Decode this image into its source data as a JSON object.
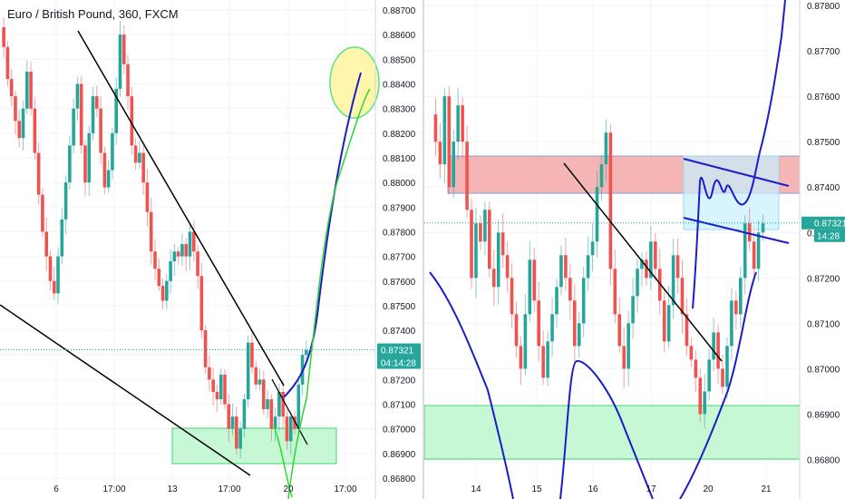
{
  "chart_data": [
    {
      "type": "candlestick",
      "title": "Euro / British Pound, 360, FXCM",
      "y_ticks": [
        "0.88700",
        "0.88600",
        "0.88500",
        "0.88400",
        "0.88300",
        "0.88200",
        "0.88100",
        "0.88000",
        "0.87900",
        "0.87800",
        "0.87700",
        "0.87600",
        "0.87500",
        "0.87400",
        "0.87300",
        "0.87200",
        "0.87100",
        "0.87000",
        "0.86900",
        "0.86800"
      ],
      "x_ticks": [
        "6",
        "17:00",
        "13",
        "17:00",
        "20",
        "17:00"
      ],
      "ylim": [
        0.8676,
        0.8875
      ],
      "price_label": "0.87321",
      "countdown_label": "04:14:28",
      "colors": {
        "up": "#26a69a",
        "down": "#ef5350",
        "zone": "#b9f6ca",
        "zone_border": "#3fd36e",
        "highlight": "#fff59d",
        "highlight_border": "#57e389",
        "projection_blue": "#1c1cc8",
        "projection_green": "#2ed62e",
        "line": "#000000"
      }
    },
    {
      "type": "candlestick",
      "y_ticks": [
        "0.87800",
        "0.87700",
        "0.87600",
        "0.87500",
        "0.87400",
        "0.87300",
        "0.87200",
        "0.87100",
        "0.87000",
        "0.86900",
        "0.86800"
      ],
      "x_ticks": [
        "14",
        "15",
        "16",
        "17",
        "20",
        "21"
      ],
      "ylim": [
        0.8674,
        0.8783
      ],
      "price_label": "0.87321",
      "countdown_label": "14:28",
      "colors": {
        "up": "#26a69a",
        "down": "#ef5350",
        "resistance": "#f4a3a3",
        "support": "#b9f6ca",
        "channel": "#c8f1ff",
        "projection_blue": "#1c1cc8",
        "line": "#000000"
      }
    }
  ]
}
